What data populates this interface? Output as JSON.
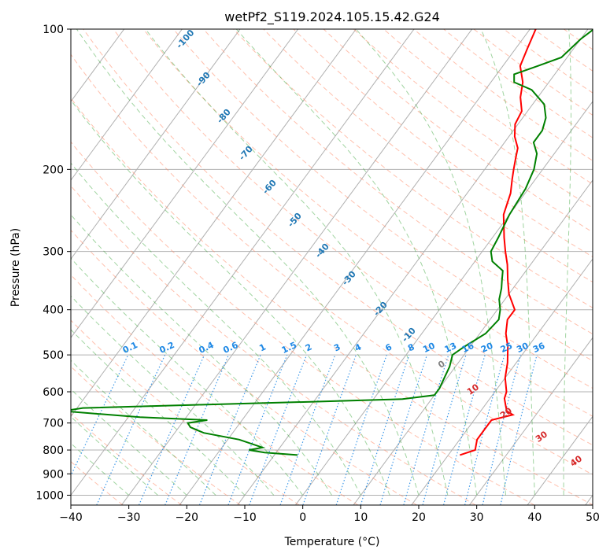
{
  "chart_data": {
    "type": "line",
    "subtype": "skew-t log-p",
    "title": "wetPf2_S119.2024.105.15.42.G24",
    "xlabel": "Temperature (°C)",
    "ylabel": "Pressure (hPa)",
    "xlim": [
      -40,
      50
    ],
    "ylim": [
      1050,
      100
    ],
    "yscale": "log",
    "x_ticks": [
      "−40",
      "−30",
      "−20",
      "−10",
      "0",
      "10",
      "20",
      "30",
      "40",
      "50"
    ],
    "y_ticks": [
      "100",
      "200",
      "300",
      "400",
      "500",
      "600",
      "700",
      "800",
      "900",
      "1000"
    ],
    "y_tick_values": [
      100,
      200,
      300,
      400,
      500,
      600,
      700,
      800,
      900,
      1000
    ],
    "grid": true,
    "series": [
      {
        "color": "#ff0000",
        "points": [
          [
            820,
            22
          ],
          [
            800,
            24
          ],
          [
            760,
            23
          ],
          [
            720,
            23
          ],
          [
            690,
            23
          ],
          [
            672,
            26
          ],
          [
            660,
            24.5
          ],
          [
            640,
            23.5
          ],
          [
            620,
            22.5
          ],
          [
            600,
            22
          ],
          [
            560,
            20
          ],
          [
            520,
            18.5
          ],
          [
            480,
            16.5
          ],
          [
            450,
            14.5
          ],
          [
            420,
            13
          ],
          [
            400,
            13
          ],
          [
            370,
            10
          ],
          [
            345,
            8
          ],
          [
            320,
            6
          ],
          [
            300,
            4
          ],
          [
            280,
            2
          ],
          [
            250,
            -1
          ],
          [
            225,
            -2.5
          ],
          [
            210,
            -4
          ],
          [
            200,
            -5
          ],
          [
            190,
            -6
          ],
          [
            180,
            -7
          ],
          [
            170,
            -9
          ],
          [
            160,
            -10.5
          ],
          [
            150,
            -11
          ],
          [
            140,
            -13
          ],
          [
            130,
            -14.5
          ],
          [
            120,
            -17
          ],
          [
            110,
            -18
          ],
          [
            100,
            -19
          ]
        ]
      },
      {
        "color": "#008000",
        "points": [
          [
            820,
            -6
          ],
          [
            810,
            -12
          ],
          [
            800,
            -15
          ],
          [
            790,
            -13
          ],
          [
            760,
            -18
          ],
          [
            735,
            -25
          ],
          [
            715,
            -28
          ],
          [
            700,
            -29
          ],
          [
            690,
            -26
          ],
          [
            680,
            -38
          ],
          [
            670,
            -45
          ],
          [
            660,
            -52
          ],
          [
            650,
            -49
          ],
          [
            640,
            -30
          ],
          [
            630,
            -10
          ],
          [
            622,
            5
          ],
          [
            610,
            10
          ],
          [
            590,
            10
          ],
          [
            560,
            9.5
          ],
          [
            530,
            9
          ],
          [
            500,
            8
          ],
          [
            480,
            9
          ],
          [
            450,
            11
          ],
          [
            420,
            11.5
          ],
          [
            400,
            10.5
          ],
          [
            380,
            9
          ],
          [
            360,
            8
          ],
          [
            345,
            7
          ],
          [
            330,
            6
          ],
          [
            315,
            3
          ],
          [
            300,
            1.5
          ],
          [
            280,
            1
          ],
          [
            250,
            0
          ],
          [
            220,
            -0.5
          ],
          [
            200,
            -1.5
          ],
          [
            185,
            -3
          ],
          [
            175,
            -5
          ],
          [
            165,
            -5
          ],
          [
            155,
            -6
          ],
          [
            145,
            -8
          ],
          [
            135,
            -12
          ],
          [
            130,
            -16
          ],
          [
            125,
            -17
          ],
          [
            120,
            -14
          ],
          [
            115,
            -11
          ],
          [
            105,
            -10
          ],
          [
            100,
            -9
          ]
        ]
      }
    ],
    "annotations": {
      "dry_adiabats": [
        "-100",
        "-90",
        "-80",
        "-70",
        "-60",
        "-50",
        "-40",
        "-30",
        "-20",
        "-10"
      ],
      "mixing_ratio": [
        "0.1",
        "0.2",
        "0.4",
        "0.6",
        "1",
        "1.5",
        "2",
        "3",
        "4",
        "6",
        "8",
        "10",
        "13",
        "16",
        "20",
        "25",
        "30",
        "36"
      ],
      "moist_adiabats": [
        "0",
        "10",
        "20",
        "30",
        "40"
      ]
    },
    "colors": {
      "dry_adiabat_text": "#1f77b4",
      "mixing_ratio": "#1e88e5",
      "moist_adiabat_text": "#d62728",
      "zero_label": "#808080",
      "dry_adiabat_line": "#ff8c69",
      "moist_adiabat_line": "#2ca02c"
    }
  }
}
